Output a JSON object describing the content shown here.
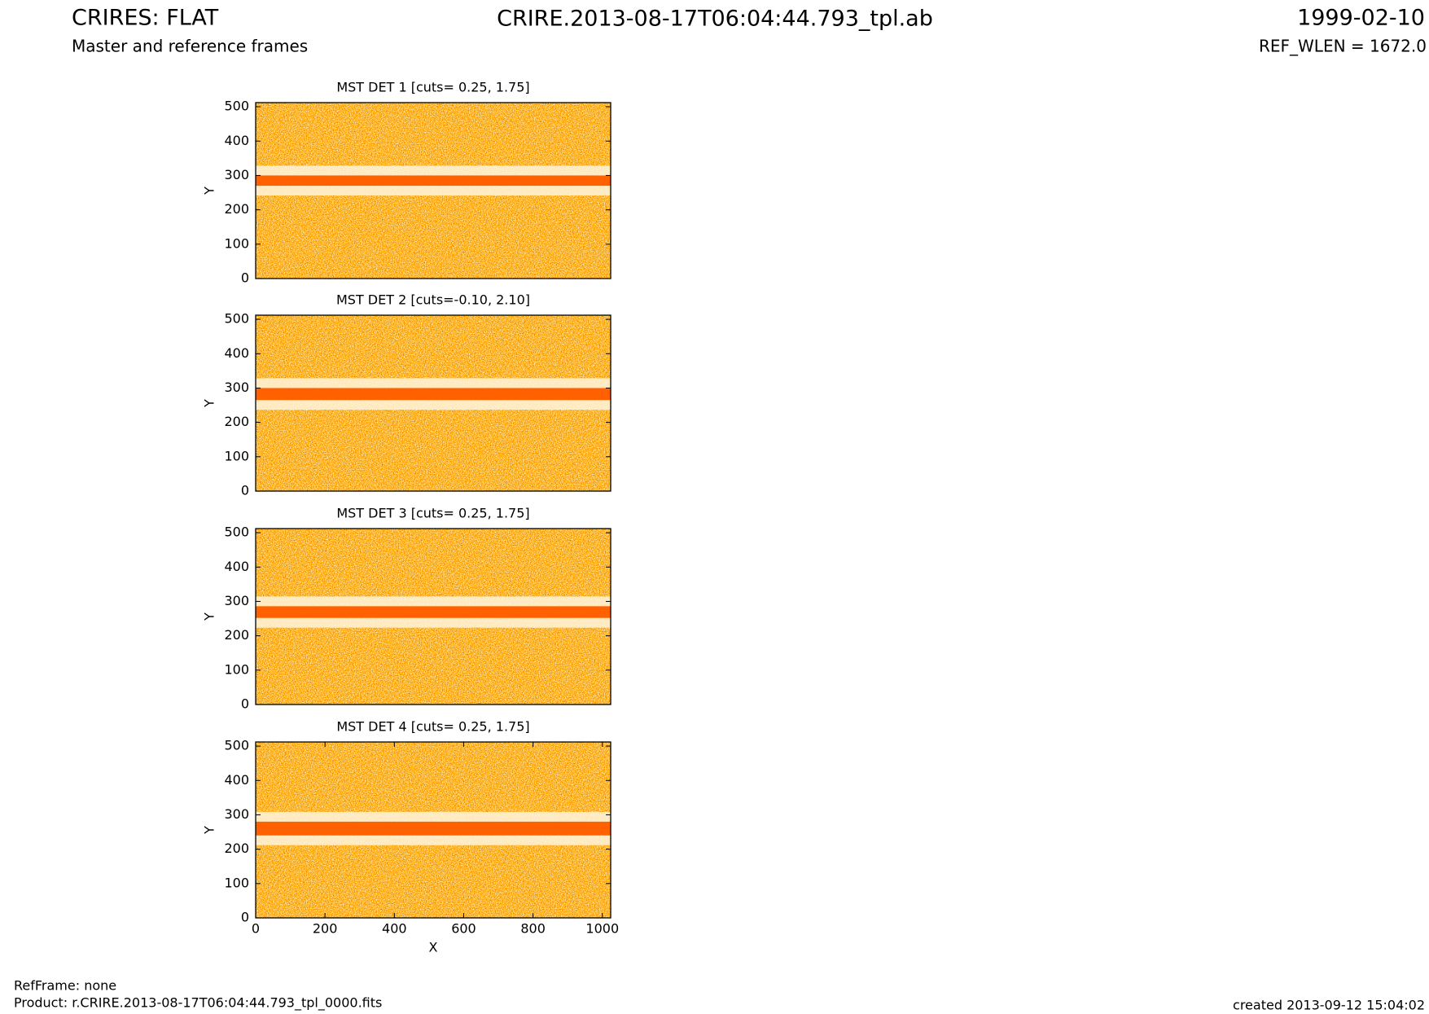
{
  "header": {
    "title": "CRIRES: FLAT",
    "subtitle": "Master and reference frames",
    "file": "CRIRE.2013-08-17T06:04:44.793_tpl.ab",
    "date": "1999-02-10",
    "ref_wlen": "REF_WLEN = 1672.0"
  },
  "footer": {
    "refframe": "RefFrame: none",
    "product": "Product: r.CRIRE.2013-08-17T06:04:44.793_tpl_0000.fits",
    "created": "created 2013-09-12 15:04:02"
  },
  "chart_data": [
    {
      "type": "image",
      "title": "MST DET 1 [cuts= 0.25, 1.75]",
      "y_label": "Y",
      "xlim": [
        0,
        1024
      ],
      "ylim": [
        0,
        512
      ],
      "yticks": [
        0,
        100,
        200,
        300,
        400,
        500
      ],
      "band": [
        270,
        300
      ],
      "color": "#ff6000"
    },
    {
      "type": "image",
      "title": "MST DET 2 [cuts=-0.10, 2.10]",
      "y_label": "Y",
      "xlim": [
        0,
        1024
      ],
      "ylim": [
        0,
        512
      ],
      "yticks": [
        0,
        100,
        200,
        300,
        400,
        500
      ],
      "band": [
        265,
        300
      ],
      "color": "#ff6000"
    },
    {
      "type": "image",
      "title": "MST DET 3 [cuts= 0.25, 1.75]",
      "y_label": "Y",
      "xlim": [
        0,
        1024
      ],
      "ylim": [
        0,
        512
      ],
      "yticks": [
        0,
        100,
        200,
        300,
        400,
        500
      ],
      "band": [
        252,
        286
      ],
      "color": "#ff6000"
    },
    {
      "type": "image",
      "title": "MST DET 4 [cuts= 0.25, 1.75]",
      "y_label": "Y",
      "x_label": "X",
      "xlim": [
        0,
        1024
      ],
      "ylim": [
        0,
        512
      ],
      "yticks": [
        0,
        100,
        200,
        300,
        400,
        500
      ],
      "xticks": [
        0,
        200,
        400,
        600,
        800,
        1000
      ],
      "band": [
        240,
        280
      ],
      "color": "#ff6000"
    }
  ]
}
